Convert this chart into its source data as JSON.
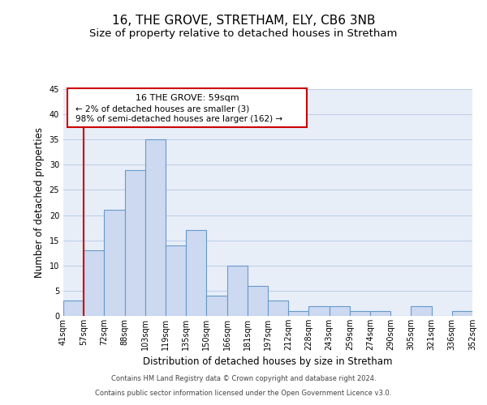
{
  "title": "16, THE GROVE, STRETHAM, ELY, CB6 3NB",
  "subtitle": "Size of property relative to detached houses in Stretham",
  "xlabel": "Distribution of detached houses by size in Stretham",
  "ylabel": "Number of detached properties",
  "bin_labels": [
    "41sqm",
    "57sqm",
    "72sqm",
    "88sqm",
    "103sqm",
    "119sqm",
    "135sqm",
    "150sqm",
    "166sqm",
    "181sqm",
    "197sqm",
    "212sqm",
    "228sqm",
    "243sqm",
    "259sqm",
    "274sqm",
    "290sqm",
    "305sqm",
    "321sqm",
    "336sqm",
    "352sqm"
  ],
  "bar_heights": [
    3,
    13,
    21,
    29,
    35,
    14,
    17,
    4,
    10,
    6,
    3,
    1,
    2,
    2,
    1,
    1,
    0,
    2,
    0,
    1
  ],
  "bar_color": "#ccd9f0",
  "bar_edge_color": "#6699cc",
  "red_line_index": 1,
  "ylim": [
    0,
    45
  ],
  "yticks": [
    0,
    5,
    10,
    15,
    20,
    25,
    30,
    35,
    40,
    45
  ],
  "annotation_title": "16 THE GROVE: 59sqm",
  "annotation_line1": "← 2% of detached houses are smaller (3)",
  "annotation_line2": "98% of semi-detached houses are larger (162) →",
  "annotation_box_color": "#ffffff",
  "annotation_box_edge": "#cc0000",
  "footer_line1": "Contains HM Land Registry data © Crown copyright and database right 2024.",
  "footer_line2": "Contains public sector information licensed under the Open Government Licence v3.0.",
  "bg_color": "#ffffff",
  "plot_bg_color": "#e8eef8",
  "grid_color": "#c0cfe8",
  "title_fontsize": 11,
  "subtitle_fontsize": 9.5,
  "axis_label_fontsize": 8.5,
  "tick_fontsize": 7,
  "footer_fontsize": 6
}
